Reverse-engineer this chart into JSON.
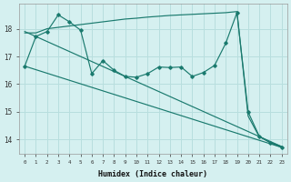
{
  "background_color": "#d5f0f0",
  "grid_color": "#b8dede",
  "line_color": "#1a7a6e",
  "xlabel": "Humidex (Indice chaleur)",
  "ylabel_ticks": [
    14,
    15,
    16,
    17,
    18
  ],
  "xlim": [
    -0.5,
    23.5
  ],
  "ylim": [
    13.5,
    18.9
  ],
  "series1_top": {
    "x": [
      0,
      1,
      2,
      3,
      4,
      5,
      6,
      7,
      8,
      9,
      10,
      11,
      12,
      13,
      14,
      15,
      16,
      17,
      18,
      19,
      20,
      21,
      22,
      23
    ],
    "y": [
      17.85,
      17.85,
      18.0,
      18.05,
      18.1,
      18.15,
      18.2,
      18.25,
      18.3,
      18.35,
      18.38,
      18.42,
      18.45,
      18.48,
      18.5,
      18.52,
      18.54,
      18.56,
      18.58,
      18.62,
      14.85,
      14.1,
      13.9,
      13.75
    ]
  },
  "series2_jagged": {
    "x": [
      0,
      1,
      2,
      3,
      4,
      5,
      6,
      7,
      8,
      9,
      10,
      11,
      12,
      13,
      14,
      15,
      16,
      17,
      18,
      19,
      20,
      21,
      22,
      23
    ],
    "y": [
      16.65,
      17.72,
      17.9,
      18.5,
      18.25,
      17.95,
      16.38,
      16.85,
      16.5,
      16.28,
      16.25,
      16.38,
      16.62,
      16.6,
      16.62,
      16.28,
      16.42,
      16.68,
      17.48,
      18.58,
      15.0,
      14.12,
      13.88,
      13.72
    ]
  },
  "series3_straight1": {
    "x": [
      0,
      23
    ],
    "y": [
      17.9,
      13.75
    ]
  },
  "series4_straight2": {
    "x": [
      0,
      23
    ],
    "y": [
      16.65,
      13.72
    ]
  }
}
